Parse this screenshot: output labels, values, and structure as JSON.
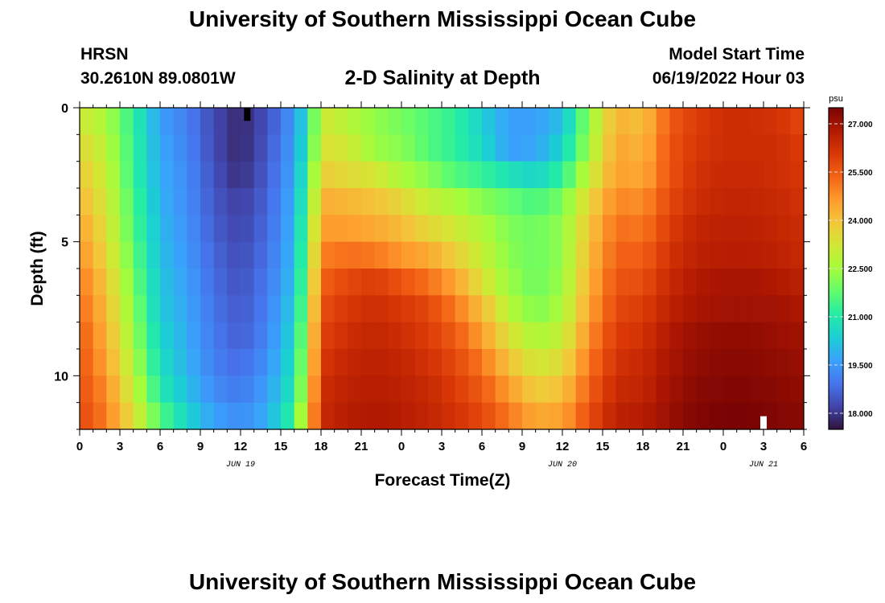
{
  "header": {
    "title": "University of Southern Mississippi Ocean Cube",
    "station": "HRSN",
    "coords": "30.2610N  89.0801W",
    "subtitle": "2-D Salinity at Depth",
    "model_start_label": "Model Start Time",
    "model_start_value": "06/19/2022 Hour 03"
  },
  "footer": {
    "title": "University of Southern Mississippi Ocean Cube"
  },
  "chart_data": {
    "type": "heatmap",
    "title": "2-D Salinity at Depth",
    "xlabel": "Forecast Time(Z)",
    "ylabel": "Depth (ft)",
    "x_ticks": [
      "0",
      "3",
      "6",
      "9",
      "12",
      "15",
      "18",
      "21",
      "0",
      "3",
      "6",
      "9",
      "12",
      "15",
      "18",
      "21",
      "0",
      "3",
      "6"
    ],
    "date_labels": [
      {
        "label": "JUN 19",
        "at_hour": 12
      },
      {
        "label": "JUN 20",
        "at_hour": 36
      },
      {
        "label": "JUN 21",
        "at_hour": 51
      }
    ],
    "x_range_hours": [
      0,
      54
    ],
    "y_ticks": [
      0,
      5,
      10
    ],
    "y_range": [
      0,
      12
    ],
    "y_inverted": true,
    "colorbar": {
      "unit": "psu",
      "min": 17.5,
      "max": 27.5,
      "tick_values": [
        27.0,
        25.5,
        24.0,
        22.5,
        21.0,
        19.5,
        18.0
      ],
      "tick_labels": [
        "27.000",
        "25.500",
        "24.000",
        "22.500",
        "21.000",
        "19.500",
        "18.000"
      ]
    },
    "colormap": [
      "#30123b",
      "#4145ab",
      "#4675ed",
      "#39a2fc",
      "#1bcfd4",
      "#24eca6",
      "#61fc6c",
      "#a4fc3b",
      "#d1e834",
      "#f3c63a",
      "#fe9b2d",
      "#f36315",
      "#d93806",
      "#b11901",
      "#7a0403"
    ],
    "depth_levels_ft": [
      0.5,
      1.5,
      2.5,
      3.5,
      4.5,
      5.5,
      6.5,
      7.5,
      8.5,
      9.5,
      10.5,
      11.5
    ],
    "time_keys_hours": [
      0,
      2,
      4,
      6,
      8,
      10,
      12,
      14,
      16,
      17,
      18,
      20,
      22,
      24,
      26,
      28,
      30,
      32,
      34,
      36,
      38,
      40,
      42,
      44,
      46,
      48,
      50,
      52,
      54
    ],
    "salinity_grid": [
      [
        23.2,
        22.6,
        21.2,
        19.6,
        19.1,
        18.3,
        17.8,
        18.4,
        19.5,
        20.8,
        23.2,
        22.8,
        22.3,
        22.0,
        21.6,
        21.2,
        20.4,
        19.6,
        19.6,
        20.1,
        22.3,
        24.3,
        24.0,
        25.5,
        26.0,
        26.3,
        26.3,
        26.2,
        25.8
      ],
      [
        23.6,
        22.8,
        21.3,
        19.7,
        19.2,
        18.3,
        17.8,
        18.5,
        19.6,
        21.0,
        23.4,
        23.2,
        22.4,
        22.2,
        21.6,
        21.2,
        20.6,
        19.6,
        19.7,
        20.5,
        22.5,
        24.5,
        24.2,
        25.6,
        26.1,
        26.3,
        26.3,
        26.3,
        26.0
      ],
      [
        23.9,
        23.0,
        21.3,
        19.8,
        19.3,
        18.4,
        17.9,
        18.6,
        19.7,
        21.3,
        23.8,
        23.5,
        23.3,
        22.6,
        22.2,
        21.6,
        21.3,
        20.8,
        20.5,
        21.2,
        23.0,
        24.6,
        24.4,
        25.6,
        26.2,
        26.4,
        26.4,
        26.3,
        26.1
      ],
      [
        24.2,
        23.2,
        21.5,
        19.9,
        19.3,
        18.5,
        18.1,
        18.7,
        19.8,
        21.6,
        24.3,
        24.2,
        24.0,
        23.6,
        23.0,
        22.6,
        22.2,
        21.8,
        21.5,
        22.0,
        23.6,
        24.9,
        24.8,
        25.8,
        26.3,
        26.5,
        26.5,
        26.4,
        26.2
      ],
      [
        24.5,
        23.4,
        21.6,
        20.0,
        19.4,
        18.6,
        18.2,
        18.8,
        19.9,
        21.9,
        24.6,
        24.6,
        24.4,
        24.1,
        23.6,
        23.2,
        22.7,
        22.1,
        21.9,
        22.3,
        23.9,
        25.2,
        25.1,
        26.0,
        26.5,
        26.6,
        26.6,
        26.5,
        26.3
      ],
      [
        24.8,
        23.6,
        21.8,
        20.1,
        19.5,
        18.7,
        18.3,
        18.9,
        20.0,
        22.1,
        25.0,
        25.2,
        25.1,
        24.7,
        24.4,
        23.8,
        23.0,
        22.2,
        21.9,
        22.3,
        24.1,
        25.4,
        25.4,
        26.2,
        26.6,
        26.7,
        26.7,
        26.6,
        26.4
      ],
      [
        25.1,
        23.9,
        22.0,
        20.2,
        19.6,
        18.8,
        18.4,
        19.0,
        20.1,
        22.3,
        25.4,
        25.8,
        26.0,
        25.6,
        25.2,
        24.5,
        23.4,
        22.4,
        21.9,
        22.4,
        24.3,
        25.6,
        25.7,
        26.4,
        26.8,
        26.9,
        26.9,
        26.8,
        26.6
      ],
      [
        25.3,
        24.1,
        22.2,
        20.3,
        19.7,
        18.9,
        18.5,
        19.1,
        20.3,
        22.5,
        25.7,
        26.1,
        26.3,
        26.1,
        25.8,
        25.1,
        24.1,
        22.8,
        22.1,
        22.6,
        24.5,
        25.8,
        26.0,
        26.6,
        26.9,
        27.0,
        27.0,
        27.0,
        26.8
      ],
      [
        25.5,
        24.3,
        22.4,
        20.5,
        19.8,
        19.0,
        18.6,
        19.2,
        20.5,
        22.8,
        25.9,
        26.3,
        26.5,
        26.3,
        26.0,
        25.5,
        24.6,
        23.4,
        22.6,
        23.0,
        24.8,
        26.0,
        26.2,
        26.8,
        27.1,
        27.2,
        27.2,
        27.1,
        27.0
      ],
      [
        25.6,
        24.5,
        22.7,
        20.7,
        19.9,
        19.1,
        18.8,
        19.4,
        20.7,
        23.0,
        26.1,
        26.5,
        26.6,
        26.5,
        26.2,
        25.8,
        25.1,
        24.0,
        23.2,
        23.5,
        25.1,
        26.2,
        26.4,
        26.9,
        27.2,
        27.3,
        27.3,
        27.2,
        27.1
      ],
      [
        25.7,
        24.8,
        23.0,
        21.0,
        20.1,
        19.3,
        19.0,
        19.6,
        20.9,
        23.3,
        26.3,
        26.6,
        26.7,
        26.6,
        26.4,
        26.0,
        25.5,
        24.6,
        23.8,
        24.0,
        25.4,
        26.4,
        26.5,
        27.0,
        27.3,
        27.4,
        27.4,
        27.3,
        27.2
      ],
      [
        25.8,
        25.0,
        23.4,
        21.6,
        20.5,
        19.6,
        19.3,
        19.8,
        21.3,
        23.7,
        26.4,
        26.7,
        26.8,
        26.7,
        26.5,
        26.2,
        25.8,
        25.1,
        24.4,
        24.5,
        25.7,
        26.6,
        26.7,
        27.1,
        27.4,
        27.5,
        27.5,
        27.4,
        27.3
      ]
    ],
    "markers": [
      {
        "name": "black-marker",
        "hour": 12.5,
        "depth": 0.25,
        "color": "#000000"
      },
      {
        "name": "white-marker",
        "hour": 51,
        "depth": 11.75,
        "color": "#ffffff"
      }
    ]
  }
}
